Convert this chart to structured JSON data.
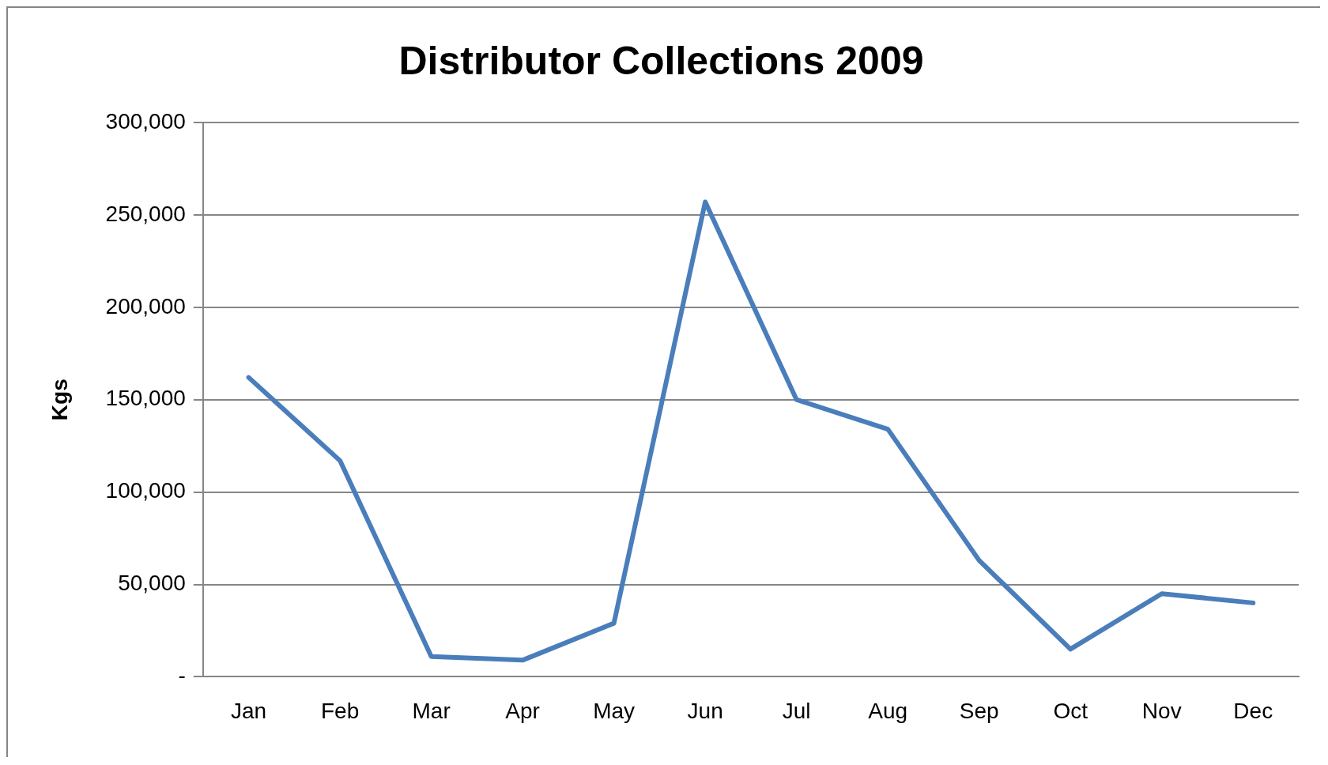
{
  "chart_data": {
    "type": "line",
    "title": "Distributor Collections 2009",
    "ylabel": "Kgs",
    "categories": [
      "Jan",
      "Feb",
      "Mar",
      "Apr",
      "May",
      "Jun",
      "Jul",
      "Aug",
      "Sep",
      "Oct",
      "Nov",
      "Dec"
    ],
    "series": [
      {
        "color": "#4a7ebb",
        "values": [
          162000,
          117000,
          11000,
          9000,
          29000,
          257000,
          150000,
          134000,
          63000,
          15000,
          45000,
          40000
        ]
      }
    ],
    "ylim": [
      0,
      300000
    ],
    "yticks": [
      {
        "value": 0,
        "label": "-"
      },
      {
        "value": 50000,
        "label": "50,000"
      },
      {
        "value": 100000,
        "label": "100,000"
      },
      {
        "value": 150000,
        "label": "150,000"
      },
      {
        "value": 200000,
        "label": "200,000"
      },
      {
        "value": 250000,
        "label": "250,000"
      },
      {
        "value": 300000,
        "label": "300,000"
      }
    ],
    "grid": "y",
    "legend": false,
    "marker": "none",
    "line_style": "solid"
  }
}
